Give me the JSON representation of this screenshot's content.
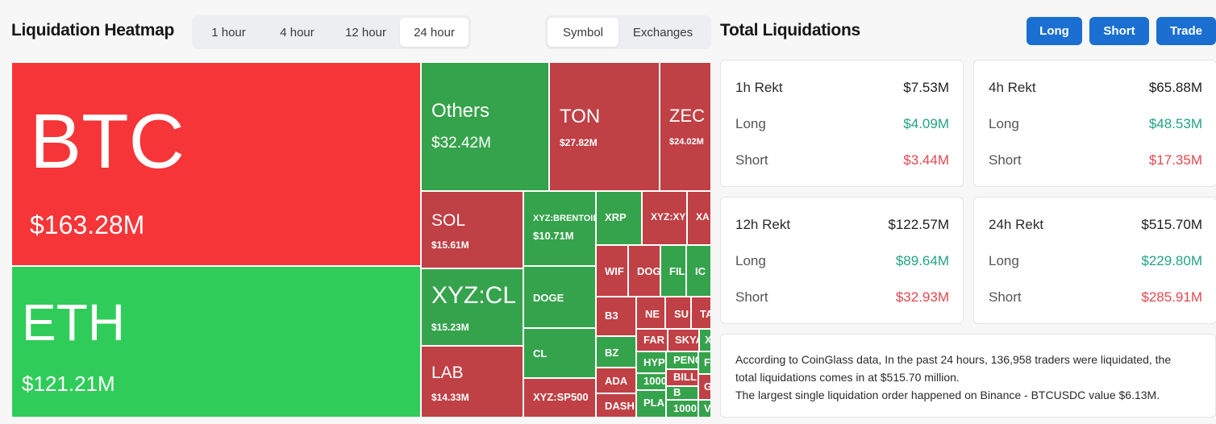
{
  "heatmap": {
    "title": "Liquidation Heatmap",
    "time_options": [
      "1 hour",
      "4 hour",
      "12 hour",
      "24 hour"
    ],
    "time_selected": "24 hour",
    "mode_options": [
      "Symbol",
      "Exchanges"
    ],
    "mode_selected": "Symbol",
    "colors": {
      "red": "#f63538",
      "green": "#30cc5a",
      "dark_red": "#bf4045",
      "dark_green": "#35a34b"
    },
    "tiles": [
      {
        "symbol": "BTC",
        "value": "$163.28M",
        "color": "red"
      },
      {
        "symbol": "ETH",
        "value": "$121.21M",
        "color": "green"
      },
      {
        "symbol": "Others",
        "value": "$32.42M",
        "color": "dgreen"
      },
      {
        "symbol": "TON",
        "value": "$27.82M",
        "color": "dred"
      },
      {
        "symbol": "ZEC",
        "value": "$24.02M",
        "color": "dred"
      },
      {
        "symbol": "SOL",
        "value": "$15.61M",
        "color": "dred"
      },
      {
        "symbol": "XYZ:CL",
        "value": "$15.23M",
        "color": "dgreen"
      },
      {
        "symbol": "LAB",
        "value": "$14.33M",
        "color": "dred"
      },
      {
        "symbol": "XYZ:BRENTOIL",
        "value": "$10.71M",
        "color": "dgreen"
      },
      {
        "symbol": "DOGE",
        "value": "",
        "color": "dgreen"
      },
      {
        "symbol": "CL",
        "value": "",
        "color": "dgreen"
      },
      {
        "symbol": "XYZ:SP500",
        "value": "",
        "color": "dred"
      },
      {
        "symbol": "XRP",
        "value": "",
        "color": "dgreen"
      },
      {
        "symbol": "XYZ:XY",
        "value": "",
        "color": "dred"
      },
      {
        "symbol": "XA",
        "value": "",
        "color": "dred"
      },
      {
        "symbol": "WIF",
        "value": "",
        "color": "dred"
      },
      {
        "symbol": "DOG",
        "value": "",
        "color": "dred"
      },
      {
        "symbol": "FIL",
        "value": "",
        "color": "dgreen"
      },
      {
        "symbol": "IC",
        "value": "",
        "color": "dgreen"
      },
      {
        "symbol": "B3",
        "value": "",
        "color": "dred"
      },
      {
        "symbol": "NE",
        "value": "",
        "color": "dred"
      },
      {
        "symbol": "SU",
        "value": "",
        "color": "dred"
      },
      {
        "symbol": "TA",
        "value": "",
        "color": "dred"
      },
      {
        "symbol": "BZ",
        "value": "",
        "color": "dgreen"
      },
      {
        "symbol": "FAR",
        "value": "",
        "color": "dred"
      },
      {
        "symbol": "SKYA",
        "value": "",
        "color": "dred"
      },
      {
        "symbol": "X",
        "value": "",
        "color": "dgreen"
      },
      {
        "symbol": "ADA",
        "value": "",
        "color": "dred"
      },
      {
        "symbol": "HYP",
        "value": "",
        "color": "dgreen"
      },
      {
        "symbol": "PENG",
        "value": "",
        "color": "dgreen"
      },
      {
        "symbol": "F",
        "value": "",
        "color": "dgreen"
      },
      {
        "symbol": "BILL",
        "value": "",
        "color": "dred"
      },
      {
        "symbol": "1000",
        "value": "",
        "color": "dgreen"
      },
      {
        "symbol": "B",
        "value": "",
        "color": "dgreen"
      },
      {
        "symbol": "G",
        "value": "",
        "color": "dred"
      },
      {
        "symbol": "DASH",
        "value": "",
        "color": "dred"
      },
      {
        "symbol": "PLA",
        "value": "",
        "color": "dgreen"
      },
      {
        "symbol": "1000",
        "value": "",
        "color": "dgreen"
      },
      {
        "symbol": "V",
        "value": "",
        "color": "dgreen"
      }
    ]
  },
  "totals": {
    "title": "Total Liquidations",
    "buttons": {
      "long": "Long",
      "short": "Short",
      "trade": "Trade"
    },
    "cards": [
      {
        "label": "1h Rekt",
        "total": "$7.53M",
        "long_label": "Long",
        "long": "$4.09M",
        "short_label": "Short",
        "short": "$3.44M"
      },
      {
        "label": "4h Rekt",
        "total": "$65.88M",
        "long_label": "Long",
        "long": "$48.53M",
        "short_label": "Short",
        "short": "$17.35M"
      },
      {
        "label": "12h Rekt",
        "total": "$122.57M",
        "long_label": "Long",
        "long": "$89.64M",
        "short_label": "Short",
        "short": "$32.93M"
      },
      {
        "label": "24h Rekt",
        "total": "$515.70M",
        "long_label": "Long",
        "long": "$229.80M",
        "short_label": "Short",
        "short": "$285.91M"
      }
    ],
    "summary_line1": "According to CoinGlass data, In the past 24 hours, 136,958 traders were liquidated, the",
    "summary_line2": "total liquidations comes in at $515.70 million.",
    "summary_line3": "The largest single liquidation order happened on Binance - BTCUSDC value $6.13M."
  }
}
